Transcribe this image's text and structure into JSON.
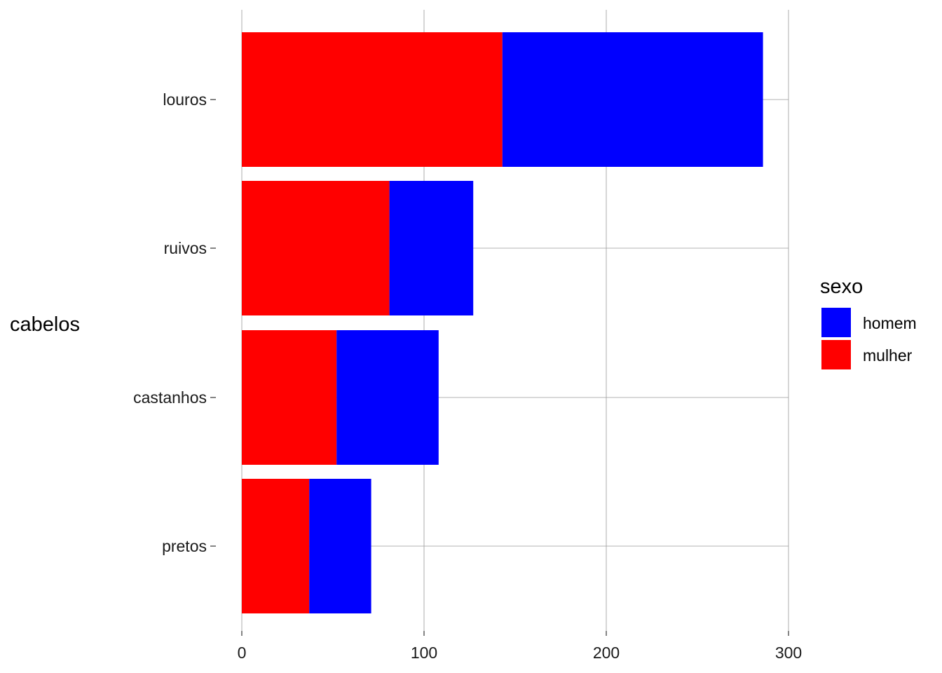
{
  "chart_data": {
    "type": "bar",
    "orientation": "horizontal",
    "stacked": true,
    "categories": [
      "louros",
      "ruivos",
      "castanhos",
      "pretos"
    ],
    "series": [
      {
        "name": "mulher",
        "color": "#ff0000",
        "values": [
          143,
          81,
          52,
          37
        ]
      },
      {
        "name": "homem",
        "color": "#0000ff",
        "values": [
          143,
          46,
          56,
          34
        ]
      }
    ],
    "ylabel": "cabelos",
    "xlabel": "",
    "xticks": [
      "0",
      "100",
      "200",
      "300"
    ],
    "xlim": [
      0,
      300
    ],
    "grid": true,
    "legend": {
      "title": "sexo",
      "placement": "right",
      "entries": [
        {
          "label": "homem",
          "color": "#0000ff"
        },
        {
          "label": "mulher",
          "color": "#ff0000"
        }
      ]
    }
  }
}
